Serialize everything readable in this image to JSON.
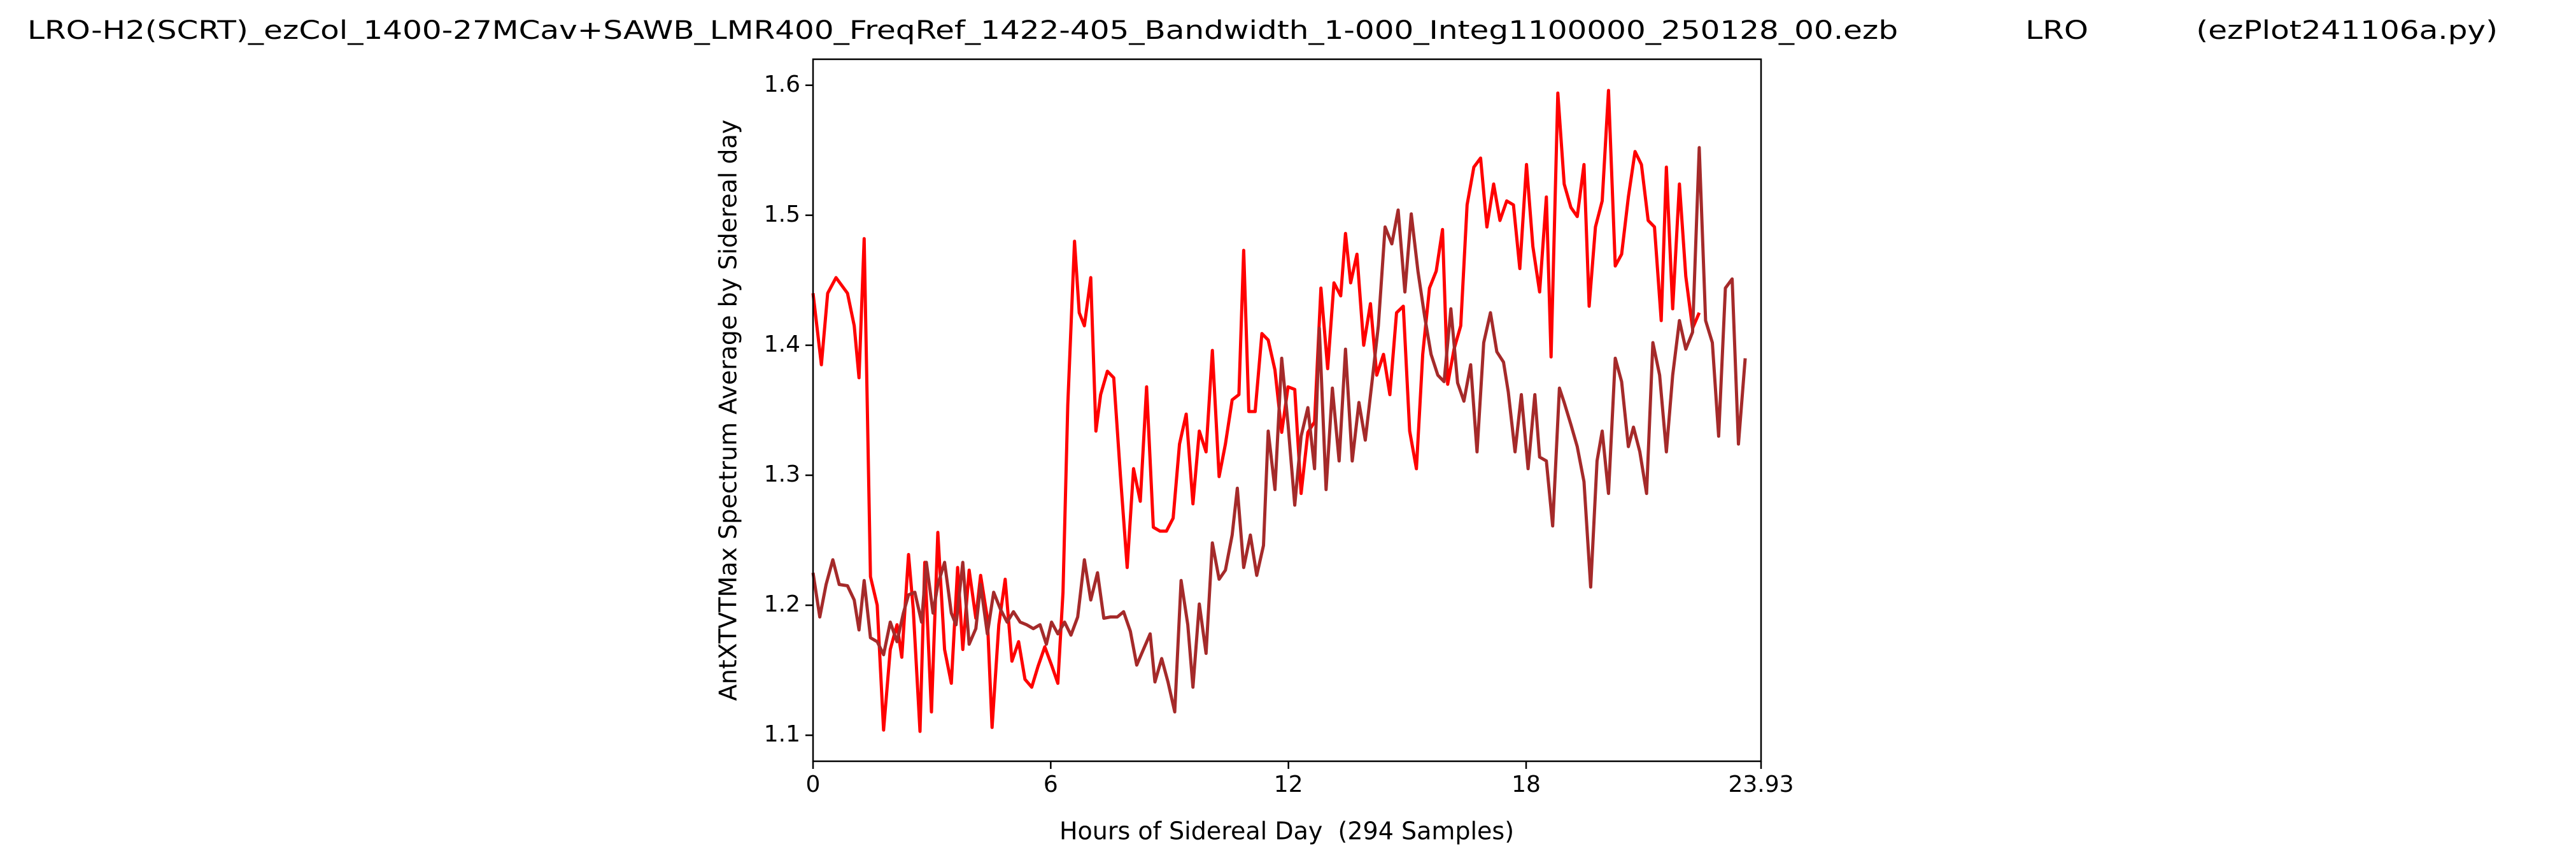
{
  "chart_data": {
    "type": "line",
    "title": "LRO-H2(SCRT)_ezCol_1400-27MCav+SAWB_LMR400_FreqRef_1422-405_Bandwidth_1-000_Integ1100000_250128_00.ezb             LRO           (ezPlot241106a.py)",
    "x_label": "Hours of Sidereal Day  (294 Samples)",
    "y_label": "AntXTVTMax Spectrum Average by Sidereal day",
    "xlim": [
      0,
      23.93
    ],
    "xticks": [
      0,
      6,
      12,
      18,
      23.93
    ],
    "ylim": [
      1.08,
      1.62
    ],
    "yticks": [
      1.1,
      1.2,
      1.3,
      1.4,
      1.5,
      1.6
    ],
    "series": [
      {
        "color": "#ff0000",
        "x": [
          0,
          0.21,
          0.37,
          0.58,
          0.87,
          1.04,
          1.16,
          1.29,
          1.45,
          1.62,
          1.78,
          1.95,
          2.12,
          2.24,
          2.41,
          2.53,
          2.7,
          2.82,
          2.99,
          3.15,
          3.32,
          3.49,
          3.65,
          3.78,
          3.94,
          4.11,
          4.23,
          4.4,
          4.52,
          4.69,
          4.85,
          5.02,
          5.19,
          5.35,
          5.52,
          5.68,
          5.85,
          6.02,
          6.18,
          6.31,
          6.43,
          6.6,
          6.72,
          6.85,
          7.01,
          7.14,
          7.26,
          7.43,
          7.59,
          7.76,
          7.93,
          8.09,
          8.26,
          8.42,
          8.59,
          8.76,
          8.92,
          9.09,
          9.25,
          9.42,
          9.59,
          9.75,
          9.92,
          10.08,
          10.25,
          10.41,
          10.58,
          10.75,
          10.87,
          11,
          11.16,
          11.33,
          11.49,
          11.66,
          11.83,
          11.99,
          12.16,
          12.32,
          12.49,
          12.66,
          12.82,
          12.99,
          13.15,
          13.32,
          13.44,
          13.57,
          13.73,
          13.9,
          14.07,
          14.23,
          14.4,
          14.56,
          14.73,
          14.9,
          15.06,
          15.23,
          15.39,
          15.56,
          15.73,
          15.89,
          16.02,
          16.18,
          16.35,
          16.51,
          16.68,
          16.85,
          17.01,
          17.18,
          17.34,
          17.51,
          17.68,
          17.84,
          18.01,
          18.17,
          18.34,
          18.51,
          18.63,
          18.8,
          18.96,
          19.13,
          19.29,
          19.46,
          19.59,
          19.75,
          19.92,
          20.08,
          20.25,
          20.41,
          20.58,
          20.75,
          20.91,
          21.08,
          21.24,
          21.41,
          21.54,
          21.7,
          21.87,
          22.03,
          22.2,
          22.37
        ],
        "values": [
          1.44,
          1.385,
          1.44,
          1.452,
          1.44,
          1.415,
          1.375,
          1.482,
          1.222,
          1.2,
          1.104,
          1.166,
          1.185,
          1.16,
          1.239,
          1.197,
          1.103,
          1.233,
          1.118,
          1.256,
          1.166,
          1.14,
          1.229,
          1.166,
          1.227,
          1.19,
          1.223,
          1.19,
          1.106,
          1.185,
          1.22,
          1.157,
          1.172,
          1.143,
          1.137,
          1.153,
          1.168,
          1.154,
          1.14,
          1.21,
          1.354,
          1.48,
          1.425,
          1.415,
          1.452,
          1.334,
          1.362,
          1.38,
          1.375,
          1.299,
          1.229,
          1.305,
          1.28,
          1.368,
          1.26,
          1.257,
          1.257,
          1.267,
          1.324,
          1.347,
          1.278,
          1.334,
          1.318,
          1.396,
          1.299,
          1.324,
          1.358,
          1.362,
          1.473,
          1.349,
          1.349,
          1.409,
          1.404,
          1.381,
          1.333,
          1.368,
          1.366,
          1.286,
          1.333,
          1.341,
          1.444,
          1.382,
          1.448,
          1.438,
          1.486,
          1.448,
          1.47,
          1.4,
          1.432,
          1.377,
          1.393,
          1.362,
          1.425,
          1.43,
          1.334,
          1.305,
          1.393,
          1.444,
          1.457,
          1.489,
          1.37,
          1.397,
          1.415,
          1.508,
          1.537,
          1.544,
          1.491,
          1.524,
          1.496,
          1.511,
          1.508,
          1.459,
          1.539,
          1.476,
          1.441,
          1.514,
          1.391,
          1.594,
          1.524,
          1.506,
          1.499,
          1.539,
          1.43,
          1.491,
          1.511,
          1.596,
          1.461,
          1.47,
          1.514,
          1.549,
          1.539,
          1.496,
          1.491,
          1.419,
          1.537,
          1.428,
          1.524,
          1.453,
          1.413,
          1.425
        ]
      },
      {
        "color": "#a52a2a",
        "x": [
          0,
          0.17,
          0.33,
          0.5,
          0.66,
          0.87,
          1.04,
          1.16,
          1.29,
          1.45,
          1.62,
          1.78,
          1.95,
          2.12,
          2.28,
          2.41,
          2.57,
          2.74,
          2.86,
          3.03,
          3.15,
          3.32,
          3.49,
          3.61,
          3.78,
          3.94,
          4.11,
          4.23,
          4.4,
          4.56,
          4.73,
          4.9,
          5.06,
          5.23,
          5.39,
          5.56,
          5.73,
          5.89,
          6.02,
          6.18,
          6.35,
          6.51,
          6.68,
          6.85,
          7.01,
          7.18,
          7.34,
          7.51,
          7.68,
          7.84,
          8.01,
          8.17,
          8.34,
          8.51,
          8.63,
          8.8,
          8.96,
          9.13,
          9.29,
          9.46,
          9.59,
          9.75,
          9.92,
          10.08,
          10.25,
          10.41,
          10.58,
          10.71,
          10.87,
          11.04,
          11.2,
          11.37,
          11.49,
          11.66,
          11.83,
          11.99,
          12.16,
          12.32,
          12.49,
          12.66,
          12.78,
          12.95,
          13.11,
          13.28,
          13.44,
          13.61,
          13.78,
          13.94,
          14.11,
          14.27,
          14.44,
          14.61,
          14.77,
          14.94,
          15.1,
          15.27,
          15.44,
          15.6,
          15.77,
          15.93,
          16.1,
          16.27,
          16.43,
          16.6,
          16.76,
          16.93,
          17.1,
          17.26,
          17.43,
          17.55,
          17.72,
          17.88,
          18.05,
          18.22,
          18.34,
          18.51,
          18.67,
          18.84,
          18.96,
          19.13,
          19.29,
          19.46,
          19.63,
          19.79,
          19.92,
          20.08,
          20.25,
          20.41,
          20.58,
          20.71,
          20.87,
          21.04,
          21.2,
          21.37,
          21.54,
          21.7,
          21.87,
          22.03,
          22.2,
          22.37,
          22.53,
          22.7,
          22.86,
          23.03,
          23.2,
          23.36,
          23.53
        ],
        "values": [
          1.225,
          1.191,
          1.216,
          1.235,
          1.216,
          1.215,
          1.204,
          1.181,
          1.219,
          1.175,
          1.172,
          1.162,
          1.187,
          1.172,
          1.194,
          1.208,
          1.21,
          1.187,
          1.233,
          1.194,
          1.216,
          1.233,
          1.194,
          1.185,
          1.233,
          1.17,
          1.182,
          1.216,
          1.178,
          1.21,
          1.197,
          1.187,
          1.195,
          1.187,
          1.185,
          1.182,
          1.185,
          1.17,
          1.187,
          1.178,
          1.187,
          1.177,
          1.191,
          1.235,
          1.204,
          1.225,
          1.19,
          1.191,
          1.191,
          1.195,
          1.18,
          1.154,
          1.166,
          1.178,
          1.141,
          1.159,
          1.141,
          1.118,
          1.219,
          1.185,
          1.137,
          1.201,
          1.163,
          1.248,
          1.22,
          1.227,
          1.254,
          1.29,
          1.229,
          1.254,
          1.223,
          1.246,
          1.334,
          1.289,
          1.39,
          1.339,
          1.277,
          1.33,
          1.352,
          1.305,
          1.413,
          1.289,
          1.367,
          1.311,
          1.397,
          1.311,
          1.356,
          1.327,
          1.372,
          1.415,
          1.491,
          1.478,
          1.504,
          1.441,
          1.501,
          1.457,
          1.422,
          1.393,
          1.377,
          1.372,
          1.428,
          1.371,
          1.357,
          1.385,
          1.318,
          1.402,
          1.425,
          1.395,
          1.387,
          1.364,
          1.318,
          1.362,
          1.305,
          1.362,
          1.314,
          1.311,
          1.261,
          1.367,
          1.356,
          1.339,
          1.322,
          1.295,
          1.214,
          1.311,
          1.334,
          1.286,
          1.39,
          1.372,
          1.322,
          1.337,
          1.318,
          1.286,
          1.402,
          1.377,
          1.318,
          1.377,
          1.419,
          1.397,
          1.41,
          1.552,
          1.419,
          1.402,
          1.33,
          1.444,
          1.451,
          1.324,
          1.39
        ]
      }
    ]
  }
}
